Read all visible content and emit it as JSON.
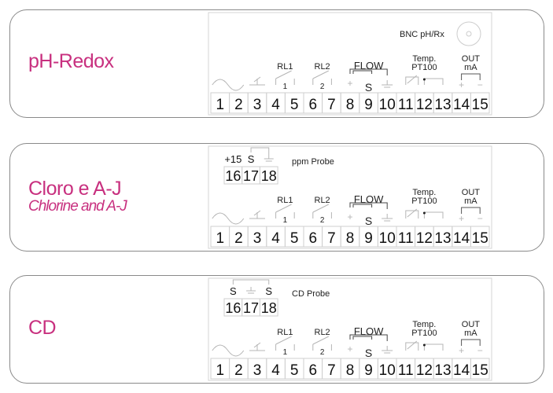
{
  "accent_color": "#c8307f",
  "panels": [
    {
      "title": "pH-Redox",
      "subtitle": "",
      "bnc_label": "BNC pH/Rx",
      "probe": null
    },
    {
      "title": "Cloro e A-J",
      "subtitle": "Chlorine and A-J",
      "bnc_label": "",
      "probe": {
        "label": "ppm Probe",
        "top_labels": [
          "+15",
          "S",
          ""
        ],
        "terminals": [
          "16",
          "17",
          "18"
        ]
      }
    },
    {
      "title": "CD",
      "subtitle": "",
      "bnc_label": "",
      "probe": {
        "label": "CD Probe",
        "top_labels": [
          "S",
          "",
          "S"
        ],
        "terminals": [
          "16",
          "17",
          "18"
        ]
      }
    }
  ],
  "terminal_block": {
    "terminals": [
      "1",
      "2",
      "3",
      "4",
      "5",
      "6",
      "7",
      "8",
      "9",
      "10",
      "11",
      "12",
      "13",
      "14",
      "15"
    ],
    "labels": {
      "rl1": "RL1",
      "rl2": "RL2",
      "flow": "FLOW",
      "temp": "Temp.",
      "pt100": "PT100",
      "out": "OUT",
      "ma": "mA"
    },
    "relay_numbers": [
      "1",
      "2"
    ],
    "flow_signal": "S",
    "plus": "+",
    "minus": "−"
  }
}
